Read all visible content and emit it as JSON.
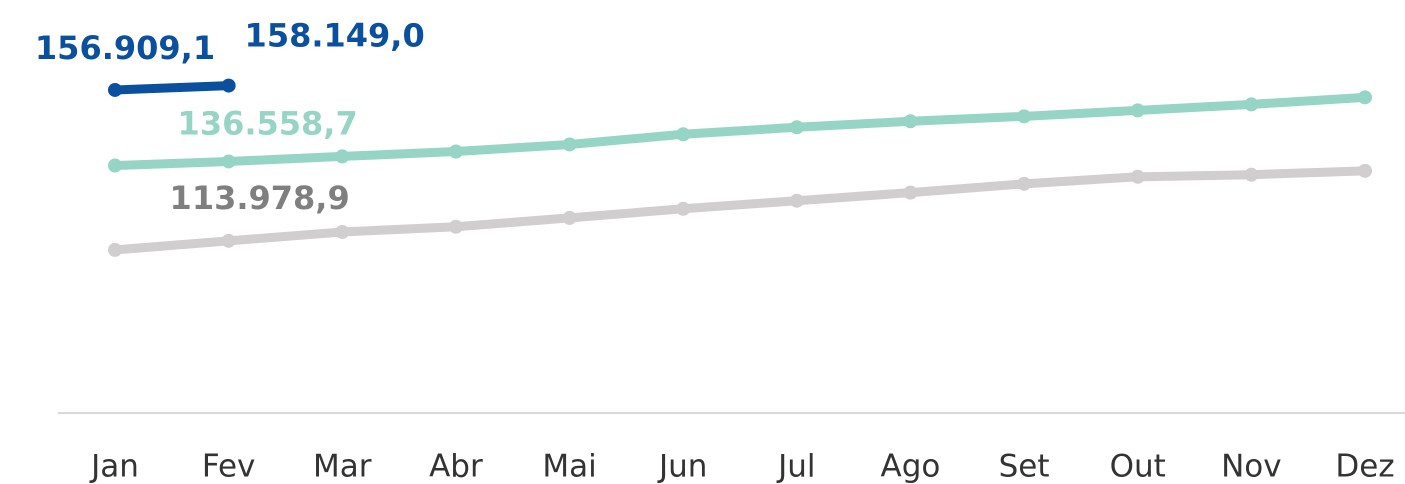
{
  "chart_data": {
    "type": "line",
    "categories": [
      "Jan",
      "Fev",
      "Mar",
      "Abr",
      "Mai",
      "Jun",
      "Jul",
      "Ago",
      "Set",
      "Out",
      "Nov",
      "Dez"
    ],
    "ylim": [
      65000,
      182500
    ],
    "series": [
      {
        "color": "#0b4f9f",
        "label_color": "#0b4f9f",
        "values": [
          156909.1,
          158149.0,
          null,
          null,
          null,
          null,
          null,
          null,
          null,
          null,
          null,
          null
        ],
        "value_labels": [
          "156.909,1",
          "158.149,0",
          null,
          null,
          null,
          null,
          null,
          null,
          null,
          null,
          null,
          null
        ]
      },
      {
        "color": "#96d4c6",
        "label_color": "#96d4c6",
        "values": [
          135400,
          136558.7,
          138000,
          139400,
          141400,
          144300,
          146300,
          148000,
          149400,
          151100,
          152800,
          154800
        ],
        "value_labels": [
          null,
          "136.558,7",
          null,
          null,
          null,
          null,
          null,
          null,
          null,
          null,
          null,
          null
        ]
      },
      {
        "color": "#d0cece",
        "label_color": "#7f7f7f",
        "values": [
          111400,
          113978.9,
          116500,
          118000,
          120500,
          123100,
          125400,
          127700,
          130200,
          132200,
          132800,
          133900
        ],
        "value_labels": [
          null,
          "113.978,9",
          null,
          null,
          null,
          null,
          null,
          null,
          null,
          null,
          null,
          null
        ]
      }
    ]
  }
}
